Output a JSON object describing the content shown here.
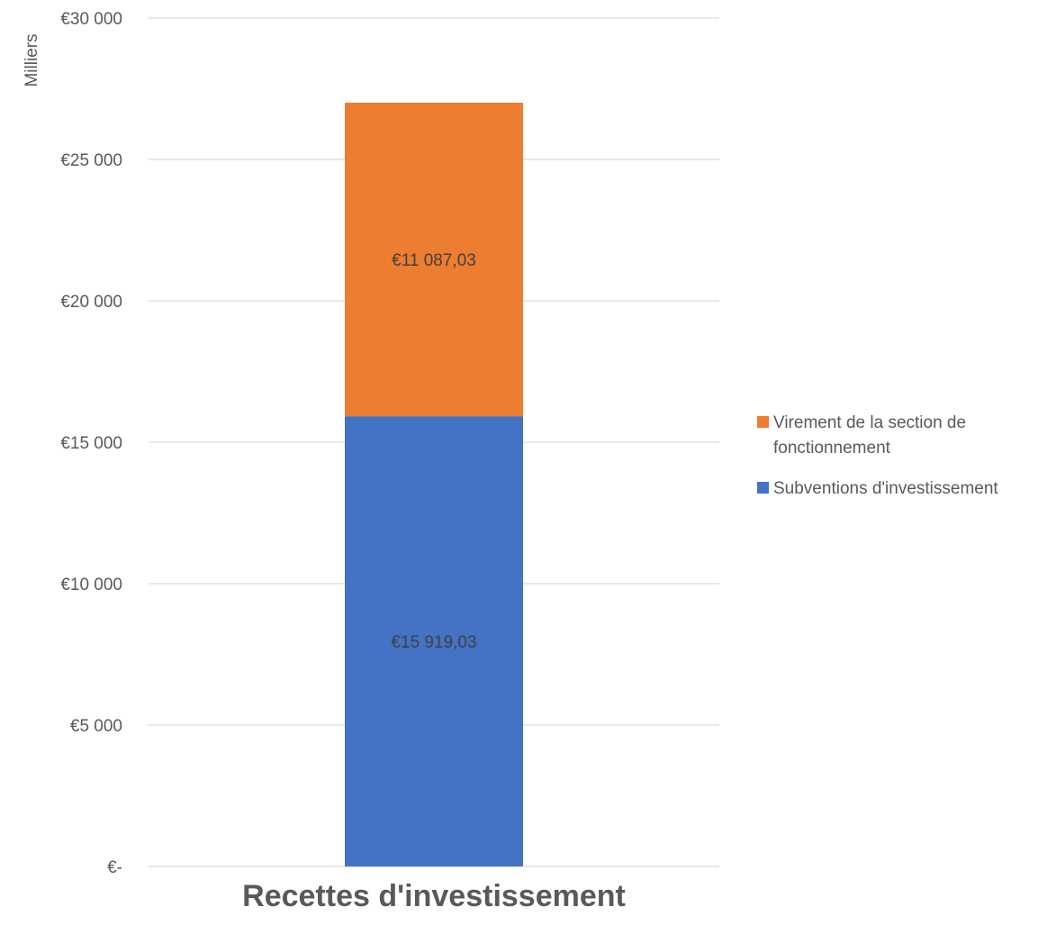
{
  "chart_data": {
    "type": "bar",
    "stacked": true,
    "categories": [
      "Recettes d'investissement"
    ],
    "series": [
      {
        "name": "Subventions d'investissement",
        "values": [
          15919.03
        ],
        "value_labels": [
          "€15 919,03"
        ],
        "color": "#4472C4"
      },
      {
        "name": "Virement de la section de fonctionnement",
        "values": [
          11087.03
        ],
        "value_labels": [
          "€11 087,03"
        ],
        "color": "#ED7D31"
      }
    ],
    "yticks": [
      0,
      5000,
      10000,
      15000,
      20000,
      25000,
      30000
    ],
    "ytick_labels": [
      "€-",
      "€5 000",
      "€10 000",
      "€15 000",
      "€20 000",
      "€25 000",
      "€30 000"
    ],
    "ylim": [
      0,
      30000
    ],
    "ylabel": "Milliers",
    "xlabel": "",
    "title": "",
    "grid": true,
    "legend_position": "right",
    "legend": [
      {
        "name": "Virement de la section de fonctionnement",
        "lines": [
          "Virement de la section de",
          "fonctionnement"
        ],
        "color": "#ED7D31"
      },
      {
        "name": "Subventions d'investissement",
        "lines": [
          "Subventions d'investissement"
        ],
        "color": "#4472C4"
      }
    ]
  }
}
